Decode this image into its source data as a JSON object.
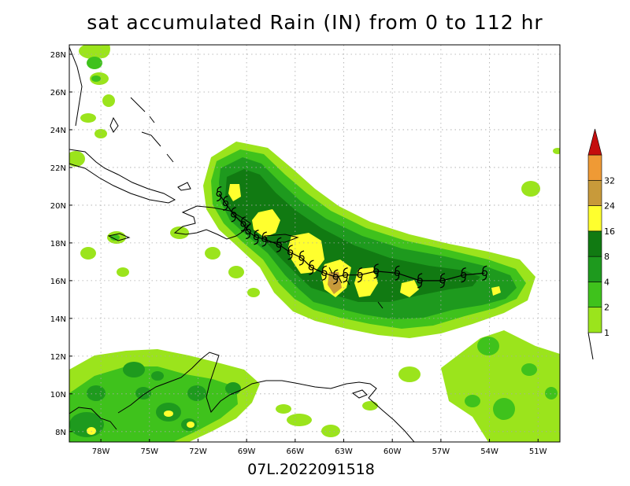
{
  "title": "sat accumulated Rain (IN) from 0 to 112 hr",
  "footer": "07L.2022091518",
  "lat_labels": [
    "28N",
    "26N",
    "24N",
    "22N",
    "20N",
    "18N",
    "16N",
    "14N",
    "12N",
    "10N",
    "8N"
  ],
  "lon_labels": [
    "78W",
    "75W",
    "72W",
    "69W",
    "66W",
    "63W",
    "60W",
    "57W",
    "54W",
    "51W"
  ],
  "colorbar": {
    "labels": [
      "1",
      "2",
      "4",
      "8",
      "16",
      "24",
      "32"
    ],
    "colors": [
      "#9be41c",
      "#3fc21c",
      "#1e9a1e",
      "#117a12",
      "#ffff2e",
      "#c89a3a",
      "#ef9a35",
      "#c40e0e"
    ]
  },
  "rain_colors": {
    "light": "#9be41c",
    "green": "#3fc21c",
    "dark": "#1e9a1e",
    "darker": "#117a12",
    "yellow": "#ffff2e",
    "brown": "#c89a3a"
  },
  "track_symbol": "hurricane-symbol",
  "track_points": [
    [
      -70.7,
      20.6
    ],
    [
      -70.3,
      20.1
    ],
    [
      -69.8,
      19.5
    ],
    [
      -69.2,
      19.0
    ],
    [
      -68.9,
      18.6
    ],
    [
      -68.4,
      18.3
    ],
    [
      -67.9,
      18.2
    ],
    [
      -67.0,
      17.9
    ],
    [
      -66.3,
      17.5
    ],
    [
      -65.6,
      17.2
    ],
    [
      -65.0,
      16.7
    ],
    [
      -64.2,
      16.4
    ],
    [
      -63.5,
      16.2
    ],
    [
      -62.9,
      16.3
    ],
    [
      -62.0,
      16.3
    ],
    [
      -61.0,
      16.5
    ],
    [
      -59.7,
      16.4
    ],
    [
      -58.3,
      16.0
    ],
    [
      -56.9,
      16.0
    ],
    [
      -55.6,
      16.3
    ],
    [
      -54.3,
      16.4
    ]
  ]
}
